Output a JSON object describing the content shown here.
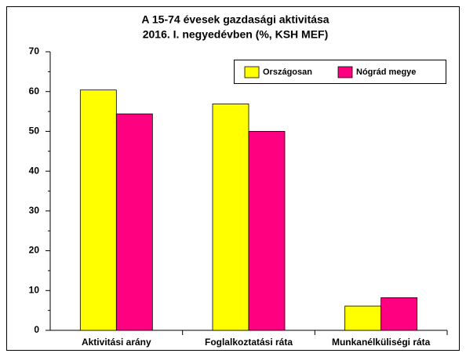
{
  "chart_data": {
    "type": "bar",
    "title": [
      "A 15-74 évesek gazdasági aktivitása",
      "2016. I. negyedévben (%, KSH MEF)"
    ],
    "categories": [
      "Aktivitási arány",
      "Foglalkoztatási ráta",
      "Munkanélküliségi ráta"
    ],
    "series": [
      {
        "name": "Országosan",
        "color": "#ffff00",
        "values": [
          60.4,
          56.9,
          6.1
        ]
      },
      {
        "name": "Nógrád megye",
        "color": "#ff0080",
        "values": [
          54.4,
          50.0,
          8.2
        ]
      }
    ],
    "ylim": [
      0,
      70
    ],
    "yticks": [
      0,
      10,
      20,
      30,
      40,
      50,
      60,
      70
    ],
    "legend": "upper right"
  }
}
